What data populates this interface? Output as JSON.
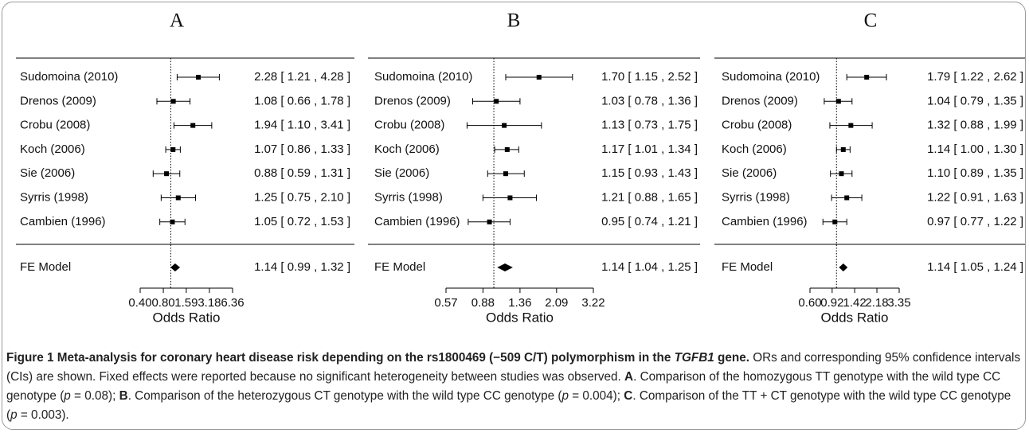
{
  "chart_data": [
    {
      "type": "forest",
      "title": "A",
      "categories": [
        "Sudomoina (2010)",
        "Drenos (2009)",
        "Crobu (2008)",
        "Koch (2006)",
        "Sie (2006)",
        "Syrris (1998)",
        "Cambien (1996)"
      ],
      "values": [
        2.28,
        1.08,
        1.94,
        1.07,
        0.88,
        1.25,
        1.05
      ],
      "ci_low": [
        1.21,
        0.66,
        1.1,
        0.86,
        0.59,
        0.75,
        0.72
      ],
      "ci_high": [
        4.28,
        1.78,
        3.41,
        1.33,
        1.31,
        2.1,
        1.53
      ],
      "value_labels": [
        "2.28 [ 1.21 , 4.28 ]",
        "1.08 [ 0.66 , 1.78 ]",
        "1.94 [ 1.10 , 3.41 ]",
        "1.07 [ 0.86 , 1.33 ]",
        "0.88 [ 0.59 , 1.31 ]",
        "1.25 [ 0.75 , 2.10 ]",
        "1.05 [ 0.72 , 1.53 ]"
      ],
      "summary": {
        "name": "FE Model",
        "value": 1.14,
        "ci_low": 0.99,
        "ci_high": 1.32,
        "value_label": "1.14 [ 0.99 , 1.32 ]"
      },
      "xlabel": "Odds Ratio",
      "log_x": true,
      "reference_line": 1,
      "color": "#000000",
      "xlim": [
        0.4,
        6.36
      ],
      "xticks": [
        {
          "value": 0.4,
          "label": "0.40"
        },
        {
          "value": 0.8,
          "label": "0.80"
        },
        1.59,
        3.18,
        6.36
      ]
    },
    {
      "type": "forest",
      "title": "B",
      "categories": [
        "Sudomoina (2010)",
        "Drenos (2009)",
        "Crobu (2008)",
        "Koch (2006)",
        "Sie (2006)",
        "Syrris (1998)",
        "Cambien (1996)"
      ],
      "values": [
        1.7,
        1.03,
        1.13,
        1.17,
        1.15,
        1.21,
        0.95
      ],
      "ci_low": [
        1.15,
        0.78,
        0.73,
        1.01,
        0.93,
        0.88,
        0.74
      ],
      "ci_high": [
        2.52,
        1.36,
        1.75,
        1.34,
        1.43,
        1.65,
        1.21
      ],
      "value_labels": [
        "1.70 [ 1.15 , 2.52 ]",
        "1.03 [ 0.78 , 1.36 ]",
        "1.13 [ 0.73 , 1.75 ]",
        "1.17 [ 1.01 , 1.34 ]",
        "1.15 [ 0.93 , 1.43 ]",
        "1.21 [ 0.88 , 1.65 ]",
        "0.95 [ 0.74 , 1.21 ]"
      ],
      "summary": {
        "name": "FE Model",
        "value": 1.14,
        "ci_low": 1.04,
        "ci_high": 1.25,
        "value_label": "1.14 [ 1.04 , 1.25 ]"
      },
      "xlabel": "Odds Ratio",
      "log_x": true,
      "reference_line": 1,
      "color": "#000000",
      "xlim": [
        0.57,
        3.22
      ],
      "xticks": [
        0.57,
        0.88,
        1.36,
        2.09,
        3.22
      ]
    },
    {
      "type": "forest",
      "title": "C",
      "categories": [
        "Sudomoina (2010)",
        "Drenos (2009)",
        "Crobu (2008)",
        "Koch (2006)",
        "Sie (2006)",
        "Syrris (1998)",
        "Cambien (1996)"
      ],
      "values": [
        1.79,
        1.04,
        1.32,
        1.14,
        1.1,
        1.22,
        0.97
      ],
      "ci_low": [
        1.22,
        0.79,
        0.88,
        1.0,
        0.89,
        0.91,
        0.77
      ],
      "ci_high": [
        2.62,
        1.35,
        1.99,
        1.3,
        1.35,
        1.63,
        1.22
      ],
      "value_labels": [
        "1.79 [ 1.22 , 2.62 ]",
        "1.04 [ 0.79 , 1.35 ]",
        "1.32 [ 0.88 , 1.99 ]",
        "1.14 [ 1.00 , 1.30 ]",
        "1.10 [ 0.89 , 1.35 ]",
        "1.22 [ 0.91 , 1.63 ]",
        "0.97 [ 0.77 , 1.22 ]"
      ],
      "summary": {
        "name": "FE Model",
        "value": 1.14,
        "ci_low": 1.05,
        "ci_high": 1.24,
        "value_label": "1.14 [ 1.05 , 1.24 ]"
      },
      "xlabel": "Odds Ratio",
      "log_x": true,
      "reference_line": 1,
      "color": "#000000",
      "xlim": [
        0.6,
        3.35
      ],
      "xticks": [
        {
          "value": 0.6,
          "label": "0.60"
        },
        0.92,
        1.42,
        2.18,
        3.35
      ]
    }
  ],
  "caption": {
    "runs": [
      {
        "text": "Figure 1 Meta-analysis for coronary heart disease risk depending on the rs1800469 (−509 C/T) polymorphism in the ",
        "style": "bold"
      },
      {
        "text": "TGFB1",
        "style": "bold-italic"
      },
      {
        "text": " gene.",
        "style": "bold"
      },
      {
        "text": " ORs and corresponding 95% confidence intervals (CIs) are shown. Fixed effects were reported because no significant heterogeneity between studies was observed. ",
        "style": "normal"
      },
      {
        "text": "A",
        "style": "bold"
      },
      {
        "text": ". Comparison of the homozygous TT genotype with the wild type CC genotype (",
        "style": "normal"
      },
      {
        "text": "p",
        "style": "italic"
      },
      {
        "text": " = 0.08); ",
        "style": "normal"
      },
      {
        "text": "B",
        "style": "bold"
      },
      {
        "text": ". Comparison of the heterozygous CT genotype with the wild type CC genotype (",
        "style": "normal"
      },
      {
        "text": "p",
        "style": "italic"
      },
      {
        "text": " = 0.004); ",
        "style": "normal"
      },
      {
        "text": "C",
        "style": "bold"
      },
      {
        "text": ". Comparison of the TT + CT genotype with the wild type CC genotype (",
        "style": "normal"
      },
      {
        "text": "p",
        "style": "italic"
      },
      {
        "text": " = 0.003).",
        "style": "normal"
      }
    ]
  }
}
